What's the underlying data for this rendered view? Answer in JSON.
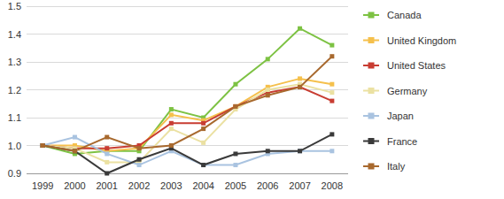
{
  "chart_data": {
    "type": "line",
    "categories": [
      "1999",
      "2000",
      "2001",
      "2002",
      "2003",
      "2004",
      "2005",
      "2006",
      "2007",
      "2008"
    ],
    "series": [
      {
        "name": "Canada",
        "color": "#7dc243",
        "values": [
          1.0,
          0.97,
          0.98,
          0.98,
          1.13,
          1.1,
          1.22,
          1.31,
          1.42,
          1.36
        ]
      },
      {
        "name": "United Kingdom",
        "color": "#f5c04c",
        "values": [
          1.0,
          1.0,
          0.98,
          0.99,
          1.11,
          1.09,
          1.14,
          1.21,
          1.24,
          1.22
        ]
      },
      {
        "name": "United States",
        "color": "#c83d32",
        "values": [
          1.0,
          0.99,
          0.99,
          1.0,
          1.08,
          1.08,
          1.14,
          1.19,
          1.21,
          1.16
        ]
      },
      {
        "name": "Germany",
        "color": "#ebe1a2",
        "values": [
          1.0,
          0.99,
          0.94,
          0.94,
          1.06,
          1.01,
          1.13,
          1.2,
          1.22,
          1.19
        ]
      },
      {
        "name": "Japan",
        "color": "#a9c3e0",
        "values": [
          1.0,
          1.03,
          0.97,
          0.93,
          0.98,
          0.93,
          0.93,
          0.97,
          0.98,
          0.98
        ]
      },
      {
        "name": "France",
        "color": "#3a3a3a",
        "values": [
          1.0,
          0.98,
          0.9,
          0.95,
          0.99,
          0.93,
          0.97,
          0.98,
          0.98,
          1.04
        ]
      },
      {
        "name": "Italy",
        "color": "#a8692e",
        "values": [
          1.0,
          0.98,
          1.03,
          0.99,
          1.0,
          1.06,
          1.14,
          1.18,
          1.21,
          1.32
        ]
      }
    ],
    "ylim": [
      0.9,
      1.5
    ],
    "yticks": [
      {
        "value": 0.9,
        "label": "0.9"
      },
      {
        "value": 1.0,
        "label": "1.0"
      },
      {
        "value": 1.1,
        "label": "1.1"
      },
      {
        "value": 1.2,
        "label": "1.2"
      },
      {
        "value": 1.3,
        "label": "1.3"
      },
      {
        "value": 1.4,
        "label": "1.4"
      },
      {
        "value": 1.5,
        "label": "1.5"
      }
    ],
    "grid": true,
    "legend": "right",
    "marker": "square"
  }
}
